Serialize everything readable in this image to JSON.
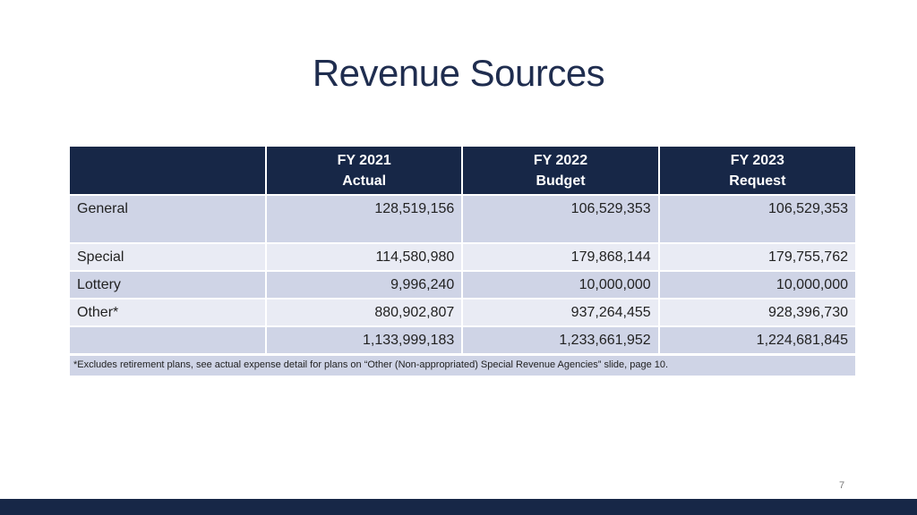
{
  "slide": {
    "title": "Revenue Sources",
    "page_number": "7",
    "footnote": "*Excludes retirement plans, see actual expense detail for plans on “Other (Non-appropriated) Special Revenue Agencies” slide, page 10."
  },
  "table": {
    "headers": [
      {
        "year": "FY 2021",
        "kind": "Actual"
      },
      {
        "year": "FY 2022",
        "kind": "Budget"
      },
      {
        "year": "FY 2023",
        "kind": "Request"
      }
    ],
    "rows": [
      {
        "label": "General",
        "values": [
          "128,519,156",
          "106,529,353",
          "106,529,353"
        ]
      },
      {
        "label": "Special",
        "values": [
          "114,580,980",
          "179,868,144",
          "179,755,762"
        ]
      },
      {
        "label": "Lottery",
        "values": [
          "9,996,240",
          "10,000,000",
          "10,000,000"
        ]
      },
      {
        "label": "Other*",
        "values": [
          "880,902,807",
          "937,264,455",
          "928,396,730"
        ]
      }
    ],
    "total": {
      "label": "",
      "values": [
        "1,133,999,183",
        "1,233,661,952",
        "1,224,681,845"
      ]
    }
  },
  "colors": {
    "header_bg": "#172747",
    "row_dark": "#cfd4e6",
    "row_light": "#e9ebf4",
    "title": "#1f2d4f"
  }
}
